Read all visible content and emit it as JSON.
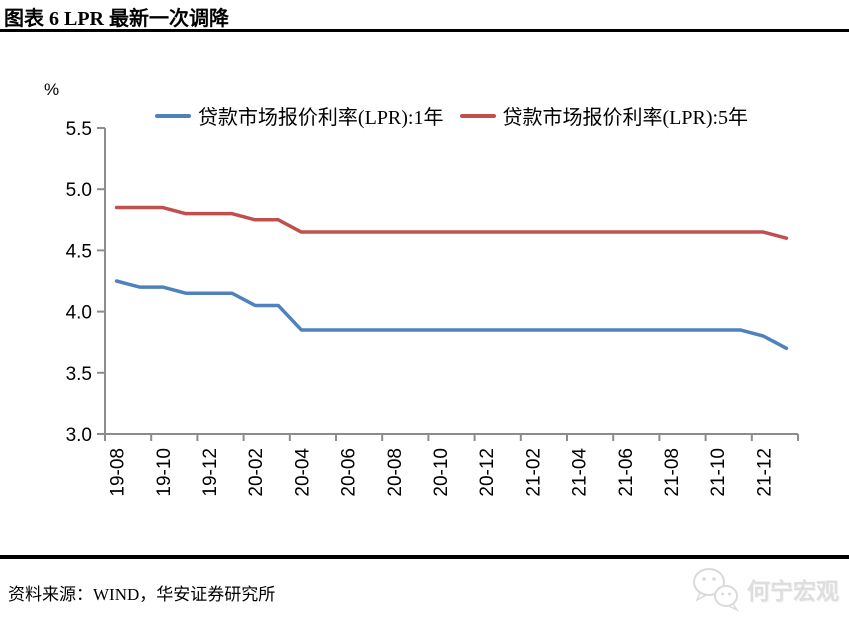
{
  "chart_data": {
    "type": "line",
    "title": "图表 6  LPR 最新一次调降",
    "xlabel": "",
    "ylabel": "%",
    "ylim": [
      3.0,
      5.5
    ],
    "yticks": [
      "5.5",
      "5.0",
      "4.5",
      "4.0",
      "3.5",
      "3.0"
    ],
    "grid": false,
    "legend_position": "top",
    "axis_color": "#8c8c8c",
    "x": [
      "19-08",
      "19-09",
      "19-10",
      "19-11",
      "19-12",
      "20-01",
      "20-02",
      "20-03",
      "20-04",
      "20-05",
      "20-06",
      "20-07",
      "20-08",
      "20-09",
      "20-10",
      "20-11",
      "20-12",
      "21-01",
      "21-02",
      "21-03",
      "21-04",
      "21-05",
      "21-06",
      "21-07",
      "21-08",
      "21-09",
      "21-10",
      "21-11",
      "21-12",
      "22-01"
    ],
    "xtick_labels": [
      "19-08",
      "19-10",
      "19-12",
      "20-02",
      "20-04",
      "20-06",
      "20-08",
      "20-10",
      "20-12",
      "21-02",
      "21-04",
      "21-06",
      "21-08",
      "21-10",
      "21-12"
    ],
    "series": [
      {
        "name": "贷款市场报价利率(LPR):1年",
        "color": "#4f81bd",
        "values": [
          4.25,
          4.2,
          4.2,
          4.15,
          4.15,
          4.15,
          4.05,
          4.05,
          3.85,
          3.85,
          3.85,
          3.85,
          3.85,
          3.85,
          3.85,
          3.85,
          3.85,
          3.85,
          3.85,
          3.85,
          3.85,
          3.85,
          3.85,
          3.85,
          3.85,
          3.85,
          3.85,
          3.85,
          3.8,
          3.7
        ]
      },
      {
        "name": "贷款市场报价利率(LPR):5年",
        "color": "#c0504d",
        "values": [
          4.85,
          4.85,
          4.85,
          4.8,
          4.8,
          4.8,
          4.75,
          4.75,
          4.65,
          4.65,
          4.65,
          4.65,
          4.65,
          4.65,
          4.65,
          4.65,
          4.65,
          4.65,
          4.65,
          4.65,
          4.65,
          4.65,
          4.65,
          4.65,
          4.65,
          4.65,
          4.65,
          4.65,
          4.65,
          4.6
        ]
      }
    ]
  },
  "footer": {
    "source": "资料来源：WIND，华安证券研究所",
    "watermark": "何宁宏观"
  }
}
